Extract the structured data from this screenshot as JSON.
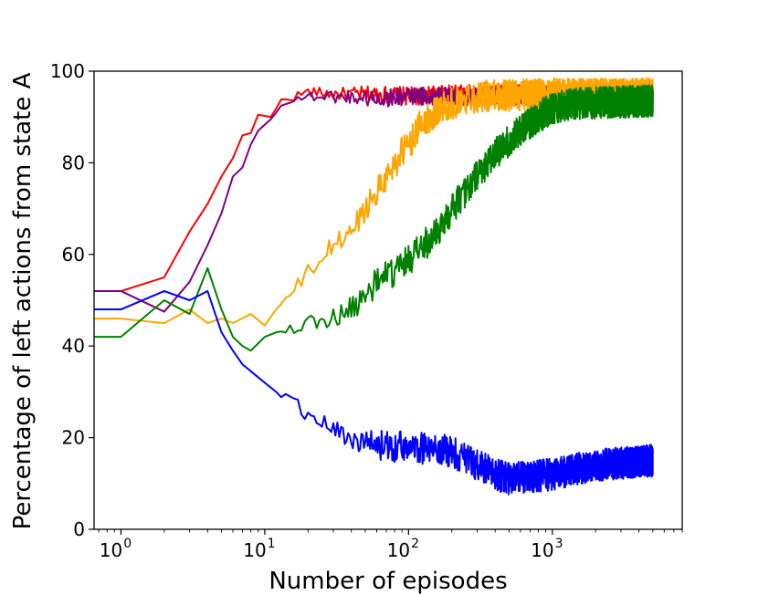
{
  "chart_data": {
    "type": "line",
    "title": "",
    "xlabel": "Number of episodes",
    "ylabel": "Percentage of left actions from state A",
    "xscale": "log",
    "xlim": [
      0.65,
      8000
    ],
    "ylim": [
      0,
      100
    ],
    "x_ticks": [
      {
        "value": 1,
        "base": "10",
        "exp": "0"
      },
      {
        "value": 10,
        "base": "10",
        "exp": "1"
      },
      {
        "value": 100,
        "base": "10",
        "exp": "2"
      },
      {
        "value": 1000,
        "base": "10",
        "exp": "3"
      }
    ],
    "y_ticks": [
      0,
      20,
      40,
      60,
      80,
      100
    ],
    "grid": false,
    "legend": "none",
    "series": [
      {
        "name": "red",
        "color": "#ff0000",
        "noise": 2,
        "noise_start": 12,
        "points": [
          [
            0.65,
            52
          ],
          [
            1,
            52
          ],
          [
            2,
            55
          ],
          [
            3,
            65
          ],
          [
            4,
            71
          ],
          [
            5,
            77
          ],
          [
            6,
            81
          ],
          [
            7,
            86
          ],
          [
            8,
            86.5
          ],
          [
            9,
            90.5
          ],
          [
            11,
            90
          ],
          [
            13,
            93.5
          ],
          [
            16,
            94.5
          ],
          [
            20,
            95.5
          ],
          [
            30,
            95
          ],
          [
            60,
            95
          ],
          [
            100,
            94.5
          ],
          [
            200,
            95
          ],
          [
            500,
            95
          ],
          [
            1000,
            95
          ],
          [
            5000,
            95
          ]
        ]
      },
      {
        "name": "purple",
        "color": "#800080",
        "noise": 2,
        "noise_start": 12,
        "points": [
          [
            0.65,
            52
          ],
          [
            1,
            52
          ],
          [
            2,
            47.5
          ],
          [
            3,
            54
          ],
          [
            4,
            62
          ],
          [
            5,
            69
          ],
          [
            6,
            77
          ],
          [
            7,
            79
          ],
          [
            8,
            84
          ],
          [
            9,
            87
          ],
          [
            11,
            89.5
          ],
          [
            14,
            93.5
          ],
          [
            20,
            94.5
          ],
          [
            30,
            94.5
          ],
          [
            60,
            94
          ],
          [
            100,
            94.5
          ],
          [
            200,
            94.5
          ],
          [
            500,
            94.5
          ],
          [
            1000,
            94.5
          ],
          [
            5000,
            94.5
          ]
        ]
      },
      {
        "name": "orange",
        "color": "#ffa500",
        "noise": 3.5,
        "noise_start": 12,
        "points": [
          [
            0.65,
            46
          ],
          [
            1,
            46
          ],
          [
            2,
            45
          ],
          [
            3,
            48
          ],
          [
            4,
            45
          ],
          [
            5,
            46
          ],
          [
            6,
            45
          ],
          [
            8,
            47
          ],
          [
            10,
            44.5
          ],
          [
            12,
            48
          ],
          [
            15,
            51
          ],
          [
            20,
            56
          ],
          [
            25,
            59
          ],
          [
            30,
            62
          ],
          [
            40,
            65
          ],
          [
            50,
            70
          ],
          [
            60,
            74
          ],
          [
            70,
            77
          ],
          [
            80,
            80
          ],
          [
            100,
            84
          ],
          [
            120,
            88
          ],
          [
            150,
            91
          ],
          [
            200,
            93
          ],
          [
            300,
            94.5
          ],
          [
            1000,
            95
          ],
          [
            5000,
            95
          ]
        ]
      },
      {
        "name": "green",
        "color": "#008000",
        "noise": 3.5,
        "noise_start": 12,
        "points": [
          [
            0.65,
            42
          ],
          [
            1,
            42
          ],
          [
            2,
            50
          ],
          [
            3,
            47
          ],
          [
            4,
            57
          ],
          [
            5,
            48
          ],
          [
            6,
            42
          ],
          [
            7,
            40
          ],
          [
            8,
            39
          ],
          [
            10,
            42
          ],
          [
            12,
            43
          ],
          [
            15,
            44
          ],
          [
            20,
            45
          ],
          [
            30,
            46
          ],
          [
            40,
            48
          ],
          [
            50,
            51
          ],
          [
            60,
            54
          ],
          [
            80,
            56
          ],
          [
            100,
            59
          ],
          [
            150,
            64
          ],
          [
            200,
            70
          ],
          [
            300,
            77
          ],
          [
            400,
            82
          ],
          [
            600,
            87
          ],
          [
            800,
            90
          ],
          [
            1000,
            92
          ],
          [
            1500,
            93
          ],
          [
            5000,
            93.5
          ]
        ]
      },
      {
        "name": "blue",
        "color": "#0000ff",
        "noise": 3.5,
        "noise_start": 12,
        "points": [
          [
            0.65,
            48
          ],
          [
            1,
            48
          ],
          [
            2,
            52
          ],
          [
            3,
            50
          ],
          [
            4,
            52
          ],
          [
            5,
            43
          ],
          [
            6,
            39
          ],
          [
            7,
            36
          ],
          [
            8,
            34.5
          ],
          [
            10,
            32
          ],
          [
            12,
            30
          ],
          [
            15,
            28
          ],
          [
            20,
            25
          ],
          [
            30,
            22
          ],
          [
            40,
            20
          ],
          [
            50,
            18.5
          ],
          [
            100,
            18
          ],
          [
            200,
            17
          ],
          [
            300,
            14
          ],
          [
            400,
            12
          ],
          [
            500,
            11
          ],
          [
            700,
            11.5
          ],
          [
            1000,
            12
          ],
          [
            2000,
            14
          ],
          [
            5000,
            15
          ]
        ]
      }
    ]
  }
}
